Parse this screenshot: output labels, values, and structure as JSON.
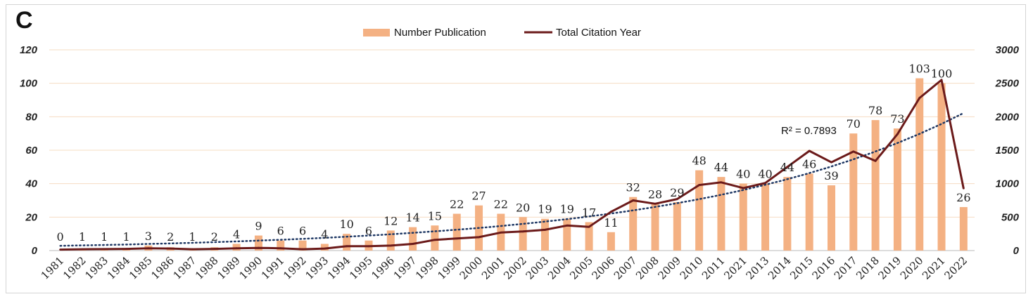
{
  "chart_data": {
    "type": "bar",
    "panel_label": "C",
    "categories": [
      "1981",
      "1982",
      "1983",
      "1984",
      "1985",
      "1986",
      "1987",
      "1988",
      "1989",
      "1990",
      "1991",
      "1992",
      "1993",
      "1994",
      "1995",
      "1996",
      "1997",
      "1998",
      "1999",
      "2000",
      "2001",
      "2002",
      "2003",
      "2004",
      "2005",
      "2006",
      "2007",
      "2008",
      "2009",
      "2010",
      "2011",
      "2021",
      "2013",
      "2014",
      "2015",
      "2016",
      "2017",
      "2018",
      "2019",
      "2020",
      "2021",
      "2022"
    ],
    "series": [
      {
        "name": "Number Publication",
        "type": "bar",
        "axis": "left",
        "color": "#f4b183",
        "values": [
          0,
          1,
          1,
          1,
          3,
          2,
          1,
          2,
          4,
          9,
          6,
          6,
          4,
          10,
          6,
          12,
          14,
          15,
          22,
          27,
          22,
          20,
          19,
          19,
          17,
          11,
          32,
          28,
          29,
          48,
          44,
          40,
          40,
          44,
          46,
          39,
          70,
          78,
          73,
          103,
          100,
          26
        ]
      },
      {
        "name": "Total Citation Year",
        "type": "line",
        "axis": "right",
        "color": "#6b1a1a",
        "values": [
          15,
          20,
          22,
          25,
          35,
          30,
          20,
          25,
          35,
          40,
          35,
          20,
          30,
          65,
          65,
          75,
          100,
          160,
          180,
          200,
          270,
          285,
          310,
          375,
          355,
          580,
          750,
          700,
          770,
          980,
          1020,
          935,
          1010,
          1250,
          1490,
          1320,
          1480,
          1340,
          1740,
          2280,
          2550,
          930
        ]
      }
    ],
    "trendline": {
      "type": "exponential",
      "axis": "left",
      "label": "R² = 0.7893",
      "color": "#1f3864"
    },
    "ylim": [
      0,
      120
    ],
    "yticks": [
      "0",
      "20",
      "40",
      "60",
      "80",
      "100",
      "120"
    ],
    "y2lim": [
      0,
      3000
    ],
    "y2ticks": [
      "0",
      "500",
      "1000",
      "1500",
      "2000",
      "2500",
      "3000"
    ],
    "title": "",
    "xlabel": "",
    "ylabel": "",
    "y2label": "",
    "grid": true,
    "legend_position": "top-center"
  }
}
